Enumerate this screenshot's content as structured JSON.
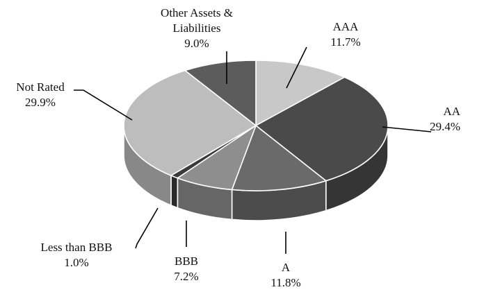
{
  "chart_data": {
    "type": "pie",
    "style": "3d",
    "title": "",
    "slices": [
      {
        "label": "AAA",
        "value": 11.7,
        "display": "11.7%",
        "color": "#c8c8c8"
      },
      {
        "label": "AA",
        "value": 29.4,
        "display": "29.4%",
        "color": "#4a4a4a"
      },
      {
        "label": "A",
        "value": 11.8,
        "display": "11.8%",
        "color": "#6a6a6a"
      },
      {
        "label": "BBB",
        "value": 7.2,
        "display": "7.2%",
        "color": "#8e8e8e"
      },
      {
        "label": "Less than BBB",
        "value": 1.0,
        "display": "1.0%",
        "color": "#3a3a3a"
      },
      {
        "label": "Not Rated",
        "value": 29.9,
        "display": "29.9%",
        "color": "#bdbdbd"
      },
      {
        "label": "Other Assets & Liabilities",
        "value": 9.0,
        "display": "9.0%",
        "color": "#5c5c5c"
      }
    ]
  }
}
